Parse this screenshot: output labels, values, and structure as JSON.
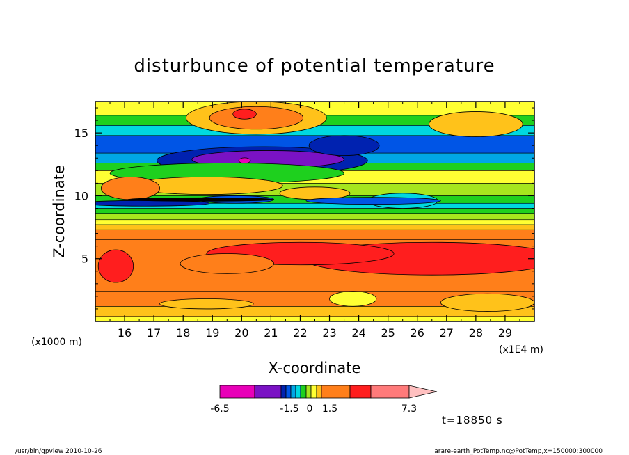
{
  "chart_data": {
    "type": "heatmap",
    "title": "disturbunce of potential temperature",
    "xlabel": "X-coordinate",
    "ylabel": "Z-coordinate",
    "x_unit_left": "(x1000 m)",
    "x_unit_right": "(x1E4 m)",
    "xlim": [
      15,
      30
    ],
    "ylim": [
      0,
      17.5
    ],
    "x_ticks": [
      16,
      17,
      18,
      19,
      20,
      21,
      22,
      23,
      24,
      25,
      26,
      27,
      28,
      29
    ],
    "y_ticks": [
      5,
      10,
      15
    ],
    "grid": false,
    "colorbar": {
      "labels": [
        "-6.5",
        "-1.5",
        "0",
        "1.5",
        "7.3"
      ],
      "colors": [
        "#e800b8",
        "#7a12c4",
        "#0022b0",
        "#0055e6",
        "#00a6e6",
        "#00d8e0",
        "#1ed01e",
        "#a6e61e",
        "#ffff33",
        "#ffc21a",
        "#ff7f1a",
        "#ff1e1e",
        "#ff7a7a",
        "#ffc0c0"
      ]
    },
    "bands": [
      {
        "z": [
          0.0,
          0.4
        ],
        "value": 0.8,
        "color": "#ffff33"
      },
      {
        "z": [
          0.4,
          1.2
        ],
        "value": 2.5,
        "color": "#ffc21a"
      },
      {
        "z": [
          1.2,
          2.4
        ],
        "value": 3.0,
        "color": "#ff7f1a"
      },
      {
        "z": [
          2.4,
          6.5
        ],
        "value": 4.2,
        "color": "#ff7f1a"
      },
      {
        "z": [
          6.5,
          7.3
        ],
        "value": 2.8,
        "color": "#ff7f1a"
      },
      {
        "z": [
          7.3,
          7.7
        ],
        "value": 2.0,
        "color": "#ffc21a"
      },
      {
        "z": [
          7.7,
          8.1
        ],
        "value": 1.2,
        "color": "#ffff33"
      },
      {
        "z": [
          8.1,
          8.6
        ],
        "value": 0.4,
        "color": "#a6e61e"
      },
      {
        "z": [
          8.6,
          9.0
        ],
        "value": -0.2,
        "color": "#1ed01e"
      },
      {
        "z": [
          9.0,
          9.4
        ],
        "value": -0.6,
        "color": "#00d8e0"
      },
      {
        "z": [
          9.4,
          10.0
        ],
        "value": -0.2,
        "color": "#1ed01e"
      },
      {
        "z": [
          10.0,
          11.0
        ],
        "value": 0.6,
        "color": "#a6e61e"
      },
      {
        "z": [
          11.0,
          12.0
        ],
        "value": 0.2,
        "color": "#ffff33"
      },
      {
        "z": [
          12.0,
          12.6
        ],
        "value": -0.4,
        "color": "#1ed01e"
      },
      {
        "z": [
          12.6,
          13.4
        ],
        "value": -1.2,
        "color": "#00a6e6"
      },
      {
        "z": [
          13.4,
          14.8
        ],
        "value": -1.8,
        "color": "#0055e6"
      },
      {
        "z": [
          14.8,
          15.6
        ],
        "value": -0.6,
        "color": "#00d8e0"
      },
      {
        "z": [
          15.6,
          16.4
        ],
        "value": 0.2,
        "color": "#1ed01e"
      },
      {
        "z": [
          16.4,
          17.5
        ],
        "value": 0.9,
        "color": "#ffff33"
      }
    ],
    "blobs": [
      {
        "x": 20.5,
        "z": 16.2,
        "rx": 2.4,
        "rz": 1.3,
        "value": 2.0,
        "color": "#ffc21a"
      },
      {
        "x": 20.5,
        "z": 16.2,
        "rx": 1.6,
        "rz": 0.9,
        "value": 3.0,
        "color": "#ff7f1a"
      },
      {
        "x": 20.1,
        "z": 16.5,
        "rx": 0.4,
        "rz": 0.4,
        "value": 5.5,
        "color": "#ff1e1e"
      },
      {
        "x": 28.0,
        "z": 15.7,
        "rx": 1.6,
        "rz": 1.0,
        "value": 1.5,
        "color": "#ffc21a"
      },
      {
        "x": 20.7,
        "z": 12.8,
        "rx": 3.6,
        "rz": 1.1,
        "value": -3.0,
        "color": "#0022b0"
      },
      {
        "x": 20.9,
        "z": 12.9,
        "rx": 2.6,
        "rz": 0.7,
        "value": -5.0,
        "color": "#7a12c4"
      },
      {
        "x": 20.1,
        "z": 12.8,
        "rx": 0.2,
        "rz": 0.22,
        "value": -6.5,
        "color": "#e800b8"
      },
      {
        "x": 23.5,
        "z": 14.0,
        "rx": 1.2,
        "rz": 0.8,
        "value": -3.0,
        "color": "#0022b0"
      },
      {
        "x": 19.5,
        "z": 11.8,
        "rx": 4.0,
        "rz": 0.8,
        "value": -0.4,
        "color": "#1ed01e"
      },
      {
        "x": 25.5,
        "z": 9.6,
        "rx": 1.2,
        "rz": 0.6,
        "value": -0.4,
        "color": "#00d8e0"
      },
      {
        "x": 18.8,
        "z": 10.8,
        "rx": 2.6,
        "rz": 0.7,
        "value": 1.5,
        "color": "#ffc21a"
      },
      {
        "x": 16.2,
        "z": 10.6,
        "rx": 1.0,
        "rz": 0.9,
        "value": 2.5,
        "color": "#ff7f1a"
      },
      {
        "x": 22.5,
        "z": 10.2,
        "rx": 1.2,
        "rz": 0.5,
        "value": 1.5,
        "color": "#ffc21a"
      },
      {
        "x": 19.8,
        "z": 9.7,
        "rx": 1.3,
        "rz": 0.3,
        "value": -1.5,
        "color": "#0055e6"
      },
      {
        "x": 24.5,
        "z": 9.6,
        "rx": 2.3,
        "rz": 0.28,
        "value": -1.5,
        "color": "#0055e6"
      },
      {
        "x": 16.7,
        "z": 9.4,
        "rx": 2.2,
        "rz": 0.22,
        "value": -3.0,
        "color": "#0022b0"
      },
      {
        "x": 18.6,
        "z": 9.7,
        "rx": 2.5,
        "rz": 0.14,
        "value": -6.0,
        "color": "#000000"
      },
      {
        "x": 26.5,
        "z": 5.0,
        "rx": 4.4,
        "rz": 1.3,
        "value": 5.5,
        "color": "#ff1e1e"
      },
      {
        "x": 22.0,
        "z": 5.4,
        "rx": 3.2,
        "rz": 0.9,
        "value": 5.5,
        "color": "#ff1e1e"
      },
      {
        "x": 15.7,
        "z": 4.4,
        "rx": 0.6,
        "rz": 1.3,
        "value": 5.5,
        "color": "#ff1e1e"
      },
      {
        "x": 19.5,
        "z": 4.6,
        "rx": 1.6,
        "rz": 0.8,
        "value": 3.0,
        "color": "#ff7f1a"
      },
      {
        "x": 23.8,
        "z": 1.8,
        "rx": 0.8,
        "rz": 0.6,
        "value": 1.5,
        "color": "#ffff33"
      },
      {
        "x": 18.8,
        "z": 1.4,
        "rx": 1.6,
        "rz": 0.4,
        "value": 2.0,
        "color": "#ffc21a"
      },
      {
        "x": 28.4,
        "z": 1.5,
        "rx": 1.6,
        "rz": 0.7,
        "value": 2.0,
        "color": "#ffc21a"
      }
    ]
  },
  "time_label": "t=18850  s",
  "footer_left": "/usr/bin/gpview   2010-10-26",
  "footer_right": "arare-earth_PotTemp.nc@PotTemp,x=150000:300000"
}
